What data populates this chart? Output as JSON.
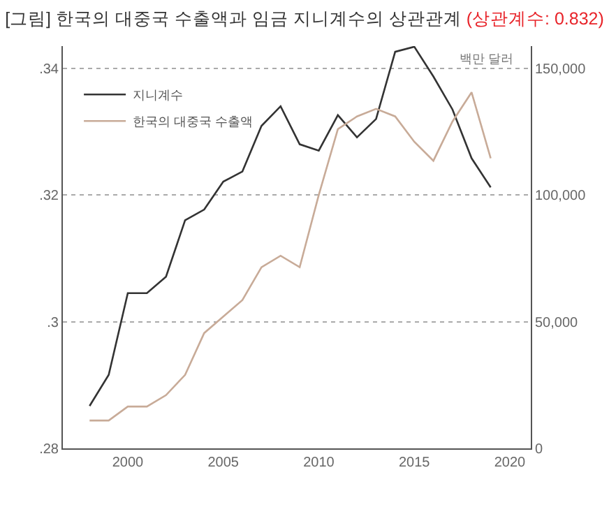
{
  "chart_data": {
    "type": "line",
    "title": "[그림] 한국의 대중국 수출액과 임금 지니계수의 상관관계",
    "annotations": [
      "(상관계수: 0.832)"
    ],
    "y2label": "백만 달러",
    "x": [
      1998,
      1999,
      2000,
      2001,
      2002,
      2003,
      2004,
      2005,
      2006,
      2007,
      2008,
      2009,
      2010,
      2011,
      2012,
      2013,
      2014,
      2015,
      2016,
      2017,
      2018,
      2019
    ],
    "series": [
      {
        "name": "지니계수",
        "color": "#333333",
        "values": [
          0.2867,
          0.2916,
          0.3045,
          0.3045,
          0.3071,
          0.316,
          0.3177,
          0.3221,
          0.3237,
          0.3309,
          0.334,
          0.328,
          0.327,
          0.3326,
          0.3291,
          0.332,
          0.3426,
          0.3434,
          0.3387,
          0.3335,
          0.3258,
          0.3212
        ]
      },
      {
        "name": "한국의 대중국 수출액",
        "color": "#c8ab98",
        "axis": "y2",
        "values": [
          11000,
          11000,
          16500,
          16500,
          21000,
          29000,
          45500,
          52000,
          58500,
          71500,
          76000,
          71500,
          100000,
          126000,
          131000,
          134000,
          131000,
          121000,
          113500,
          129000,
          140500,
          114500
        ]
      }
    ],
    "xlim": [
      1996.6,
      2021.1
    ],
    "xticks": [
      2000,
      2005,
      2010,
      2015,
      2020
    ],
    "ylim": [
      0.28,
      0.3435
    ],
    "yticks": [
      {
        "value": 0.28,
        "label": ".28"
      },
      {
        "value": 0.3,
        "label": ".3"
      },
      {
        "value": 0.32,
        "label": ".32"
      },
      {
        "value": 0.34,
        "label": ".34"
      }
    ],
    "y2lim": [
      0,
      158750
    ],
    "y2ticks": [
      0,
      {
        "value": 50000,
        "label": "50,000"
      },
      {
        "value": 100000,
        "label": "100,000"
      },
      {
        "value": 150000,
        "label": "150,000"
      }
    ],
    "grid": "y",
    "legend": "top left",
    "marker": "none",
    "line_style": "solid"
  }
}
